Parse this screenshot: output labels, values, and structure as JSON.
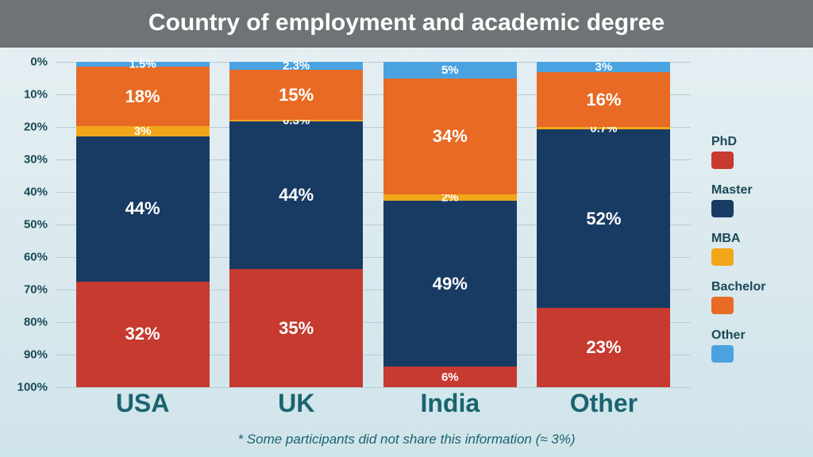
{
  "title": "Country of employment and academic degree",
  "footnote": "* Some participants did not share this information (≈ 3%)",
  "chart": {
    "type": "stacked-bar-100pct-inverted",
    "ylim": [
      0,
      100
    ],
    "ytick_step": 10,
    "yticks": [
      "0%",
      "10%",
      "20%",
      "30%",
      "40%",
      "50%",
      "60%",
      "70%",
      "80%",
      "90%",
      "100%"
    ],
    "grid_color": "#b9cdd3",
    "value_label_color": "#ffffff",
    "value_label_fontsize_large": 22,
    "value_label_fontsize_small": 15,
    "categories": [
      "USA",
      "UK",
      "India",
      "Other"
    ],
    "category_label_color": "#1a6470",
    "category_label_fontsize": 32,
    "bar_width_pct": 21,
    "bar_gap_pct": 4,
    "segments": [
      "PhD",
      "Master",
      "MBA",
      "Bachelor",
      "Other"
    ],
    "segment_colors": {
      "PhD": "#c63a2f",
      "Master": "#183b63",
      "MBA": "#f2a71b",
      "Bachelor": "#e86a24",
      "Other": "#4aa3e0"
    },
    "data": {
      "USA": {
        "PhD": 32,
        "Master": 44,
        "MBA": 3,
        "Bachelor": 18,
        "Other": 1.5
      },
      "UK": {
        "PhD": 35,
        "Master": 44,
        "MBA": 0.3,
        "Bachelor": 15,
        "Other": 2.3
      },
      "India": {
        "PhD": 6,
        "Master": 49,
        "MBA": 2,
        "Bachelor": 34,
        "Other": 5
      },
      "Other": {
        "PhD": 23,
        "Master": 52,
        "MBA": 0.7,
        "Bachelor": 16,
        "Other": 3
      }
    }
  },
  "legend": {
    "labels": [
      "PhD",
      "Master",
      "MBA",
      "Bachelor",
      "Other"
    ],
    "label_color": "#1a4a57",
    "label_fontsize": 16
  }
}
